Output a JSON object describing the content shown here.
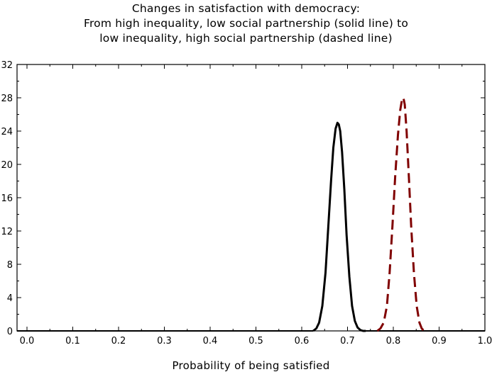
{
  "chart_data": {
    "type": "line",
    "title": [
      "Changes in satisfaction with democracy:",
      "From high inequality, low social partnership (solid line) to",
      "low inequality, high social partnership (dashed line)"
    ],
    "xlabel": "Probability of being satisfied",
    "ylabel": "",
    "xlim": [
      0.0,
      1.0
    ],
    "ylim": [
      0,
      32
    ],
    "x_ticks": [
      0.0,
      0.1,
      0.2,
      0.3,
      0.4,
      0.5,
      0.6,
      0.7,
      0.8,
      0.9,
      1.0
    ],
    "x_tick_labels": [
      "0.0",
      "0.1",
      "0.2",
      "0.3",
      "0.4",
      "0.5",
      "0.6",
      "0.7",
      "0.8",
      "0.9",
      "1.0"
    ],
    "y_ticks": [
      0,
      4,
      8,
      12,
      16,
      20,
      24,
      28,
      32
    ],
    "y_tick_labels": [
      "0",
      "4",
      "8",
      "12",
      "16",
      "20",
      "24",
      "28",
      "32"
    ],
    "grid": false,
    "series": [
      {
        "style": "solid",
        "color": "#000000",
        "x": [
          0.625,
          0.632,
          0.638,
          0.645,
          0.652,
          0.658,
          0.664,
          0.669,
          0.674,
          0.678,
          0.681,
          0.684,
          0.688,
          0.693,
          0.698,
          0.704,
          0.71,
          0.716,
          0.722,
          0.728,
          0.734,
          0.74
        ],
        "y": [
          0.0,
          0.3,
          1.0,
          3.0,
          7.0,
          12.5,
          18.0,
          22.0,
          24.3,
          25.0,
          24.8,
          24.0,
          21.5,
          17.0,
          11.5,
          6.5,
          3.0,
          1.2,
          0.4,
          0.1,
          0.0,
          0.0
        ]
      },
      {
        "style": "dashed",
        "color": "#800000",
        "x": [
          0.765,
          0.772,
          0.779,
          0.786,
          0.792,
          0.798,
          0.804,
          0.81,
          0.815,
          0.819,
          0.822,
          0.825,
          0.829,
          0.834,
          0.839,
          0.845,
          0.851,
          0.857,
          0.862,
          0.867
        ],
        "y": [
          0.0,
          0.3,
          1.0,
          3.0,
          7.0,
          12.5,
          18.5,
          23.5,
          26.5,
          27.8,
          28.0,
          27.2,
          24.0,
          18.5,
          12.5,
          7.0,
          3.0,
          1.0,
          0.3,
          0.0
        ]
      }
    ]
  }
}
